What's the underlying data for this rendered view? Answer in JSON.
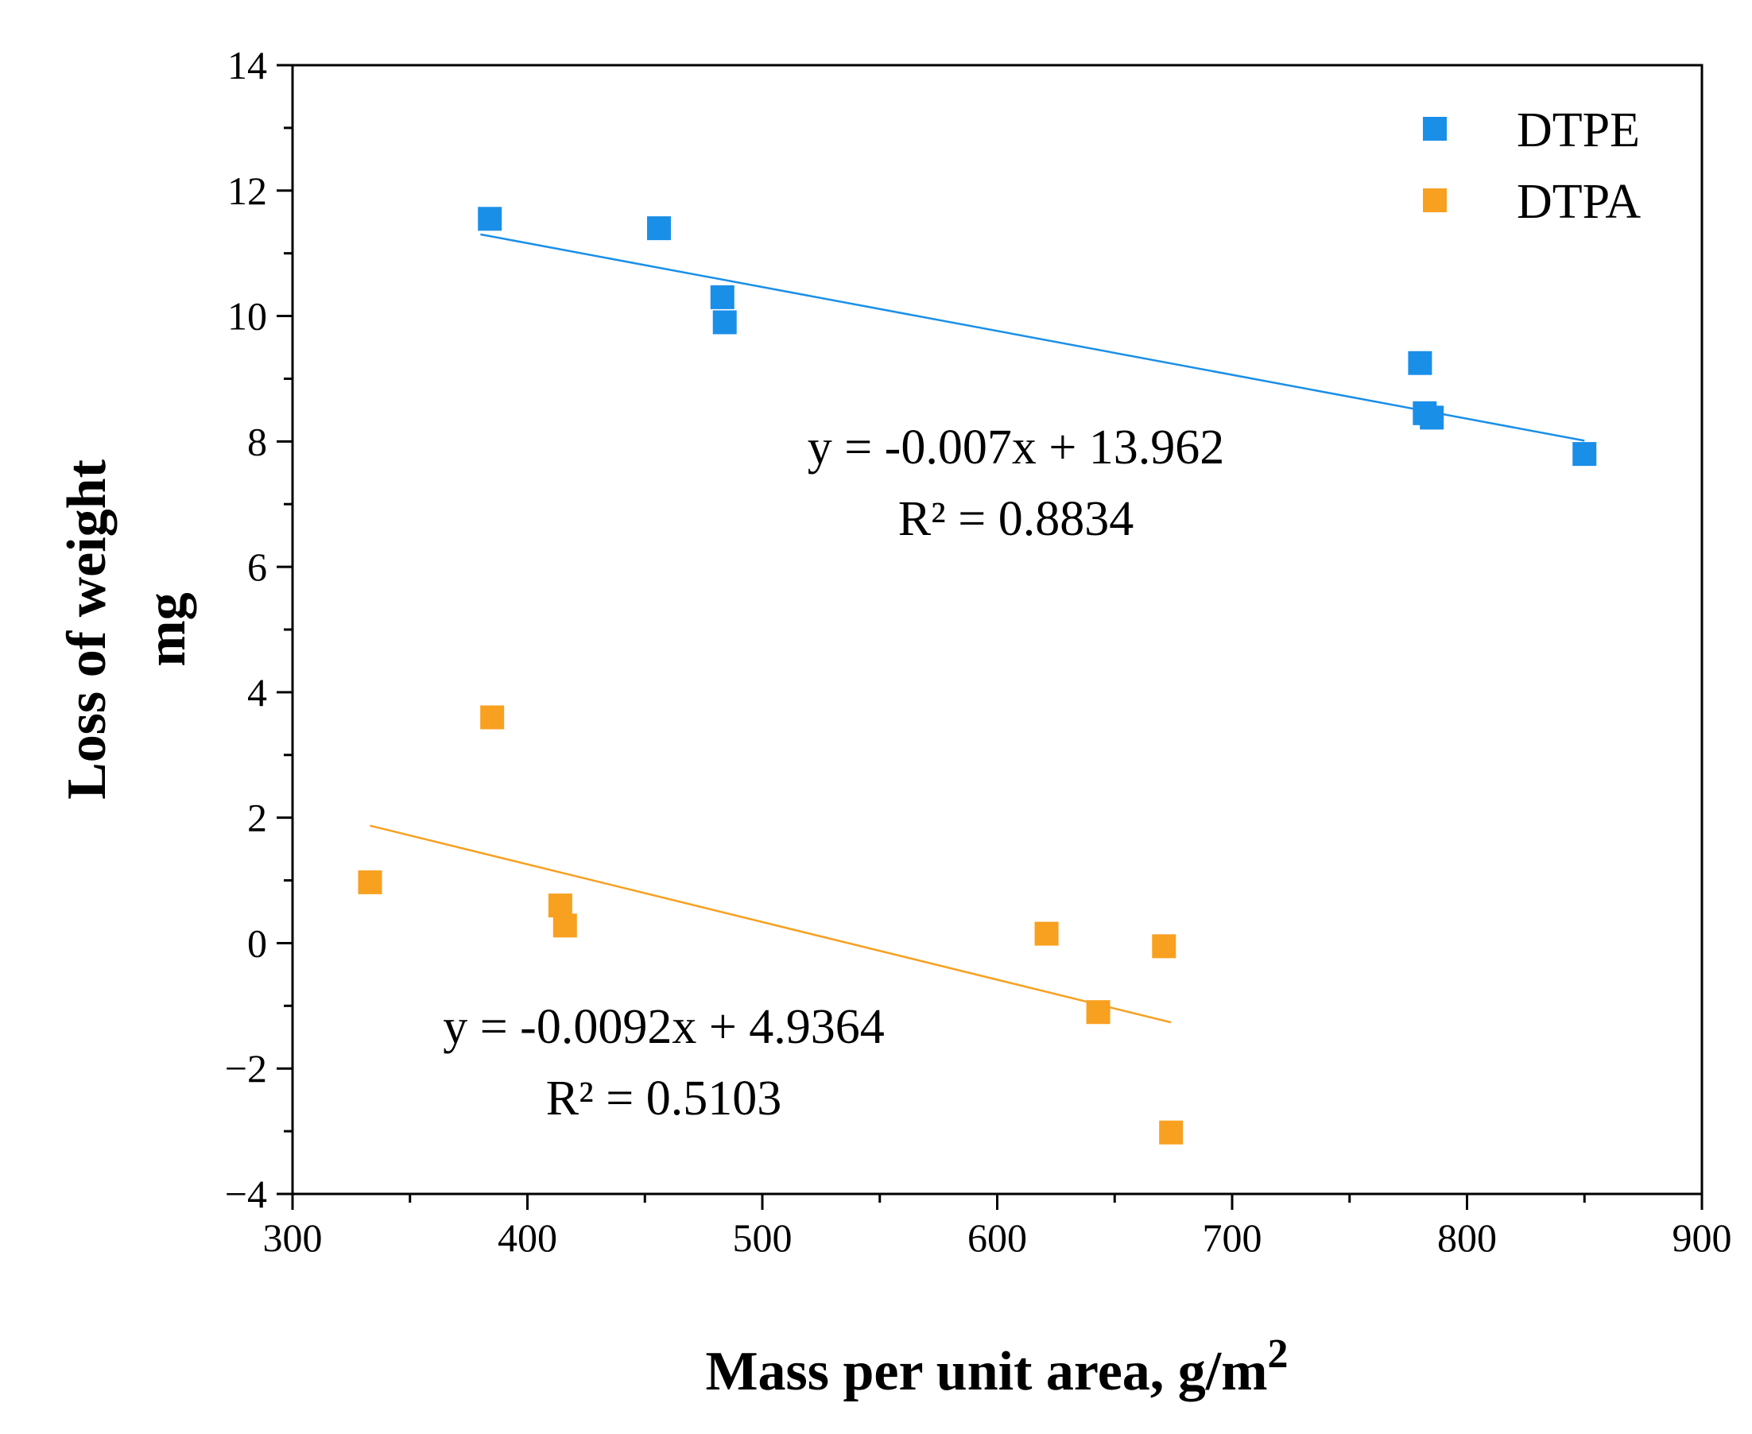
{
  "chart_data": {
    "type": "scatter",
    "title": "",
    "xlabel": "Mass per unit area, g/m",
    "xlabel_superscript": "2",
    "ylabel_line1": "Loss of weight",
    "ylabel_line2": "mg",
    "xlim": [
      300,
      900
    ],
    "ylim": [
      -4,
      14
    ],
    "x_ticks": [
      300,
      400,
      500,
      600,
      700,
      800,
      900
    ],
    "y_ticks": [
      -4,
      -2,
      0,
      2,
      4,
      6,
      8,
      10,
      12,
      14
    ],
    "x_tick_labels": [
      "300",
      "400",
      "500",
      "600",
      "700",
      "800",
      "900"
    ],
    "y_tick_labels": [
      "−4",
      "−2",
      "0",
      "2",
      "4",
      "6",
      "8",
      "10",
      "12",
      "14"
    ],
    "grid": false,
    "legend_position": "top-right",
    "series": [
      {
        "name": "DTPE",
        "color": "#1a8fe8",
        "marker": "square",
        "points": [
          {
            "x": 384,
            "y": 11.55
          },
          {
            "x": 456,
            "y": 11.4
          },
          {
            "x": 483,
            "y": 10.3
          },
          {
            "x": 484,
            "y": 9.9
          },
          {
            "x": 780,
            "y": 9.25
          },
          {
            "x": 782,
            "y": 8.45
          },
          {
            "x": 785,
            "y": 8.38
          },
          {
            "x": 850,
            "y": 7.8
          }
        ],
        "trendline": {
          "slope": -0.007,
          "intercept": 13.962,
          "x_range": [
            380,
            850
          ],
          "equation": "y = -0.007x + 13.962",
          "r_squared": "R² = 0.8834"
        }
      },
      {
        "name": "DTPA",
        "color": "#f8a020",
        "marker": "square",
        "points": [
          {
            "x": 333,
            "y": 0.97
          },
          {
            "x": 385,
            "y": 3.6
          },
          {
            "x": 414,
            "y": 0.6
          },
          {
            "x": 416,
            "y": 0.28
          },
          {
            "x": 621,
            "y": 0.15
          },
          {
            "x": 643,
            "y": -1.1
          },
          {
            "x": 671,
            "y": -0.05
          },
          {
            "x": 674,
            "y": -3.02
          }
        ],
        "trendline": {
          "slope": -0.0092,
          "intercept": 4.9364,
          "x_range": [
            333,
            674
          ],
          "equation": "y = -0.0092x + 4.9364",
          "r_squared": "R² = 0.5103"
        }
      }
    ]
  }
}
